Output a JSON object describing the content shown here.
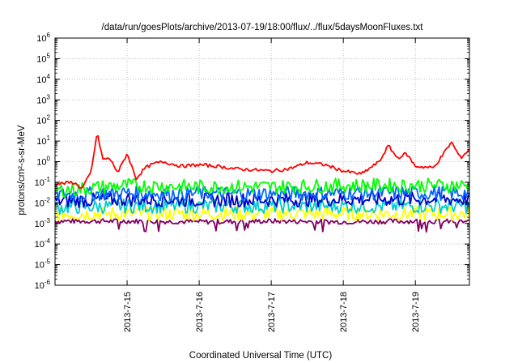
{
  "chart_data": {
    "type": "line",
    "title": "/data/run/goesPlots/archive/2013-07-19/18:00/flux/../flux/5daysMoonFluxes.txt",
    "xlabel": "Coordinated Universal Time (UTC)",
    "ylabel": "protons/cm²-s-sr-MeV",
    "y_scale": "log",
    "ylim": [
      1e-06,
      1000000.0
    ],
    "xlim": [
      "2013-07-14 00:00",
      "2013-07-19 18:00"
    ],
    "grid": true,
    "x_ticks": [
      "2013-7-15",
      "2013-7-16",
      "2013-7-17",
      "2013-7-18",
      "2013-7-19"
    ],
    "y_ticks": [
      "10^-6",
      "10^-5",
      "10^-4",
      "10^-3",
      "10^-2",
      "10^-1",
      "10^0",
      "10^1",
      "10^2",
      "10^3",
      "10^4",
      "10^5",
      "10^6"
    ],
    "series": [
      {
        "color": "#ff0000",
        "x": [
          "2013-07-14 00:00",
          "2013-07-14 06:00",
          "2013-07-14 09:00",
          "2013-07-14 12:00",
          "2013-07-14 14:00",
          "2013-07-14 16:00",
          "2013-07-14 18:00",
          "2013-07-14 21:00",
          "2013-07-15 00:00",
          "2013-07-15 03:00",
          "2013-07-15 06:00",
          "2013-07-15 09:00",
          "2013-07-15 12:00",
          "2013-07-15 18:00",
          "2013-07-16 00:00",
          "2013-07-16 06:00",
          "2013-07-16 12:00",
          "2013-07-16 18:00",
          "2013-07-17 00:00",
          "2013-07-17 06:00",
          "2013-07-17 12:00",
          "2013-07-17 18:00",
          "2013-07-18 00:00",
          "2013-07-18 06:00",
          "2013-07-18 12:00",
          "2013-07-18 15:00",
          "2013-07-18 18:00",
          "2013-07-18 21:00",
          "2013-07-19 00:00",
          "2013-07-19 06:00",
          "2013-07-19 09:00",
          "2013-07-19 12:00",
          "2013-07-19 15:00",
          "2013-07-19 18:00"
        ],
        "y": [
          0.08,
          0.1,
          0.05,
          0.3,
          25,
          1.2,
          1.5,
          0.3,
          2.5,
          0.15,
          0.5,
          0.8,
          1.0,
          0.6,
          0.7,
          0.6,
          0.45,
          0.4,
          0.35,
          0.45,
          0.9,
          0.7,
          0.35,
          0.25,
          1.0,
          6,
          1.5,
          2.5,
          0.6,
          0.5,
          2,
          9,
          1.5,
          4
        ]
      },
      {
        "color": "#00ff00",
        "x": [
          "2013-07-14 00:00",
          "2013-07-15 00:00",
          "2013-07-16 00:00",
          "2013-07-17 00:00",
          "2013-07-18 00:00",
          "2013-07-19 00:00",
          "2013-07-19 18:00"
        ],
        "y": [
          0.04,
          0.07,
          0.06,
          0.06,
          0.07,
          0.07,
          0.07
        ]
      },
      {
        "color": "#0066ff",
        "x": [
          "2013-07-14 00:00",
          "2013-07-15 00:00",
          "2013-07-16 00:00",
          "2013-07-17 00:00",
          "2013-07-18 00:00",
          "2013-07-19 00:00",
          "2013-07-19 18:00"
        ],
        "y": [
          0.025,
          0.03,
          0.028,
          0.028,
          0.03,
          0.03,
          0.03
        ]
      },
      {
        "color": "#0000cc",
        "x": [
          "2013-07-14 00:00",
          "2013-07-15 00:00",
          "2013-07-16 00:00",
          "2013-07-17 00:00",
          "2013-07-18 00:00",
          "2013-07-19 00:00",
          "2013-07-19 18:00"
        ],
        "y": [
          0.012,
          0.015,
          0.014,
          0.014,
          0.015,
          0.015,
          0.015
        ]
      },
      {
        "color": "#00cccc",
        "x": [
          "2013-07-14 00:00",
          "2013-07-15 00:00",
          "2013-07-16 00:00",
          "2013-07-17 00:00",
          "2013-07-18 00:00",
          "2013-07-19 00:00",
          "2013-07-19 18:00"
        ],
        "y": [
          0.006,
          0.007,
          0.007,
          0.007,
          0.007,
          0.007,
          0.007
        ]
      },
      {
        "color": "#ffff00",
        "x": [
          "2013-07-14 00:00",
          "2013-07-15 00:00",
          "2013-07-16 00:00",
          "2013-07-17 00:00",
          "2013-07-18 00:00",
          "2013-07-19 00:00",
          "2013-07-19 18:00"
        ],
        "y": [
          0.003,
          0.003,
          0.003,
          0.003,
          0.003,
          0.003,
          0.003
        ]
      },
      {
        "color": "#800060",
        "x": [
          "2013-07-14 00:00",
          "2013-07-15 00:00",
          "2013-07-16 00:00",
          "2013-07-17 00:00",
          "2013-07-18 00:00",
          "2013-07-19 00:00",
          "2013-07-19 18:00"
        ],
        "y": [
          0.0013,
          0.0013,
          0.0012,
          0.0013,
          0.0012,
          0.0013,
          0.0012
        ]
      }
    ]
  }
}
